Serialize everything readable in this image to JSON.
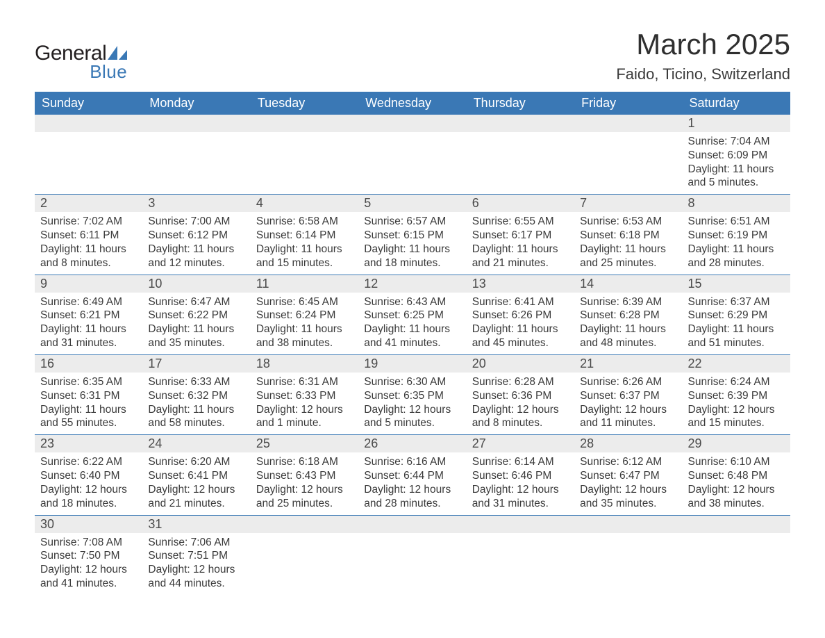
{
  "logo": {
    "text_general": "General",
    "text_blue": "Blue",
    "sail_color": "#3a78b5",
    "text_dark": "#231f20"
  },
  "header": {
    "month_title": "March 2025",
    "location": "Faido, Ticino, Switzerland"
  },
  "styling": {
    "header_bg": "#3a78b5",
    "header_text": "#ffffff",
    "daynum_bg": "#ececec",
    "row_border": "#3a78b5",
    "body_text": "#3a3a3a",
    "title_fontsize_pt": 32,
    "location_fontsize_pt": 17,
    "dayhead_fontsize_pt": 14,
    "daynum_fontsize_pt": 14,
    "body_fontsize_pt": 12
  },
  "calendar": {
    "day_headers": [
      "Sunday",
      "Monday",
      "Tuesday",
      "Wednesday",
      "Thursday",
      "Friday",
      "Saturday"
    ],
    "weeks": [
      [
        null,
        null,
        null,
        null,
        null,
        null,
        {
          "n": "1",
          "sunrise": "Sunrise: 7:04 AM",
          "sunset": "Sunset: 6:09 PM",
          "dl1": "Daylight: 11 hours",
          "dl2": "and 5 minutes."
        }
      ],
      [
        {
          "n": "2",
          "sunrise": "Sunrise: 7:02 AM",
          "sunset": "Sunset: 6:11 PM",
          "dl1": "Daylight: 11 hours",
          "dl2": "and 8 minutes."
        },
        {
          "n": "3",
          "sunrise": "Sunrise: 7:00 AM",
          "sunset": "Sunset: 6:12 PM",
          "dl1": "Daylight: 11 hours",
          "dl2": "and 12 minutes."
        },
        {
          "n": "4",
          "sunrise": "Sunrise: 6:58 AM",
          "sunset": "Sunset: 6:14 PM",
          "dl1": "Daylight: 11 hours",
          "dl2": "and 15 minutes."
        },
        {
          "n": "5",
          "sunrise": "Sunrise: 6:57 AM",
          "sunset": "Sunset: 6:15 PM",
          "dl1": "Daylight: 11 hours",
          "dl2": "and 18 minutes."
        },
        {
          "n": "6",
          "sunrise": "Sunrise: 6:55 AM",
          "sunset": "Sunset: 6:17 PM",
          "dl1": "Daylight: 11 hours",
          "dl2": "and 21 minutes."
        },
        {
          "n": "7",
          "sunrise": "Sunrise: 6:53 AM",
          "sunset": "Sunset: 6:18 PM",
          "dl1": "Daylight: 11 hours",
          "dl2": "and 25 minutes."
        },
        {
          "n": "8",
          "sunrise": "Sunrise: 6:51 AM",
          "sunset": "Sunset: 6:19 PM",
          "dl1": "Daylight: 11 hours",
          "dl2": "and 28 minutes."
        }
      ],
      [
        {
          "n": "9",
          "sunrise": "Sunrise: 6:49 AM",
          "sunset": "Sunset: 6:21 PM",
          "dl1": "Daylight: 11 hours",
          "dl2": "and 31 minutes."
        },
        {
          "n": "10",
          "sunrise": "Sunrise: 6:47 AM",
          "sunset": "Sunset: 6:22 PM",
          "dl1": "Daylight: 11 hours",
          "dl2": "and 35 minutes."
        },
        {
          "n": "11",
          "sunrise": "Sunrise: 6:45 AM",
          "sunset": "Sunset: 6:24 PM",
          "dl1": "Daylight: 11 hours",
          "dl2": "and 38 minutes."
        },
        {
          "n": "12",
          "sunrise": "Sunrise: 6:43 AM",
          "sunset": "Sunset: 6:25 PM",
          "dl1": "Daylight: 11 hours",
          "dl2": "and 41 minutes."
        },
        {
          "n": "13",
          "sunrise": "Sunrise: 6:41 AM",
          "sunset": "Sunset: 6:26 PM",
          "dl1": "Daylight: 11 hours",
          "dl2": "and 45 minutes."
        },
        {
          "n": "14",
          "sunrise": "Sunrise: 6:39 AM",
          "sunset": "Sunset: 6:28 PM",
          "dl1": "Daylight: 11 hours",
          "dl2": "and 48 minutes."
        },
        {
          "n": "15",
          "sunrise": "Sunrise: 6:37 AM",
          "sunset": "Sunset: 6:29 PM",
          "dl1": "Daylight: 11 hours",
          "dl2": "and 51 minutes."
        }
      ],
      [
        {
          "n": "16",
          "sunrise": "Sunrise: 6:35 AM",
          "sunset": "Sunset: 6:31 PM",
          "dl1": "Daylight: 11 hours",
          "dl2": "and 55 minutes."
        },
        {
          "n": "17",
          "sunrise": "Sunrise: 6:33 AM",
          "sunset": "Sunset: 6:32 PM",
          "dl1": "Daylight: 11 hours",
          "dl2": "and 58 minutes."
        },
        {
          "n": "18",
          "sunrise": "Sunrise: 6:31 AM",
          "sunset": "Sunset: 6:33 PM",
          "dl1": "Daylight: 12 hours",
          "dl2": "and 1 minute."
        },
        {
          "n": "19",
          "sunrise": "Sunrise: 6:30 AM",
          "sunset": "Sunset: 6:35 PM",
          "dl1": "Daylight: 12 hours",
          "dl2": "and 5 minutes."
        },
        {
          "n": "20",
          "sunrise": "Sunrise: 6:28 AM",
          "sunset": "Sunset: 6:36 PM",
          "dl1": "Daylight: 12 hours",
          "dl2": "and 8 minutes."
        },
        {
          "n": "21",
          "sunrise": "Sunrise: 6:26 AM",
          "sunset": "Sunset: 6:37 PM",
          "dl1": "Daylight: 12 hours",
          "dl2": "and 11 minutes."
        },
        {
          "n": "22",
          "sunrise": "Sunrise: 6:24 AM",
          "sunset": "Sunset: 6:39 PM",
          "dl1": "Daylight: 12 hours",
          "dl2": "and 15 minutes."
        }
      ],
      [
        {
          "n": "23",
          "sunrise": "Sunrise: 6:22 AM",
          "sunset": "Sunset: 6:40 PM",
          "dl1": "Daylight: 12 hours",
          "dl2": "and 18 minutes."
        },
        {
          "n": "24",
          "sunrise": "Sunrise: 6:20 AM",
          "sunset": "Sunset: 6:41 PM",
          "dl1": "Daylight: 12 hours",
          "dl2": "and 21 minutes."
        },
        {
          "n": "25",
          "sunrise": "Sunrise: 6:18 AM",
          "sunset": "Sunset: 6:43 PM",
          "dl1": "Daylight: 12 hours",
          "dl2": "and 25 minutes."
        },
        {
          "n": "26",
          "sunrise": "Sunrise: 6:16 AM",
          "sunset": "Sunset: 6:44 PM",
          "dl1": "Daylight: 12 hours",
          "dl2": "and 28 minutes."
        },
        {
          "n": "27",
          "sunrise": "Sunrise: 6:14 AM",
          "sunset": "Sunset: 6:46 PM",
          "dl1": "Daylight: 12 hours",
          "dl2": "and 31 minutes."
        },
        {
          "n": "28",
          "sunrise": "Sunrise: 6:12 AM",
          "sunset": "Sunset: 6:47 PM",
          "dl1": "Daylight: 12 hours",
          "dl2": "and 35 minutes."
        },
        {
          "n": "29",
          "sunrise": "Sunrise: 6:10 AM",
          "sunset": "Sunset: 6:48 PM",
          "dl1": "Daylight: 12 hours",
          "dl2": "and 38 minutes."
        }
      ],
      [
        {
          "n": "30",
          "sunrise": "Sunrise: 7:08 AM",
          "sunset": "Sunset: 7:50 PM",
          "dl1": "Daylight: 12 hours",
          "dl2": "and 41 minutes."
        },
        {
          "n": "31",
          "sunrise": "Sunrise: 7:06 AM",
          "sunset": "Sunset: 7:51 PM",
          "dl1": "Daylight: 12 hours",
          "dl2": "and 44 minutes."
        },
        null,
        null,
        null,
        null,
        null
      ]
    ]
  }
}
